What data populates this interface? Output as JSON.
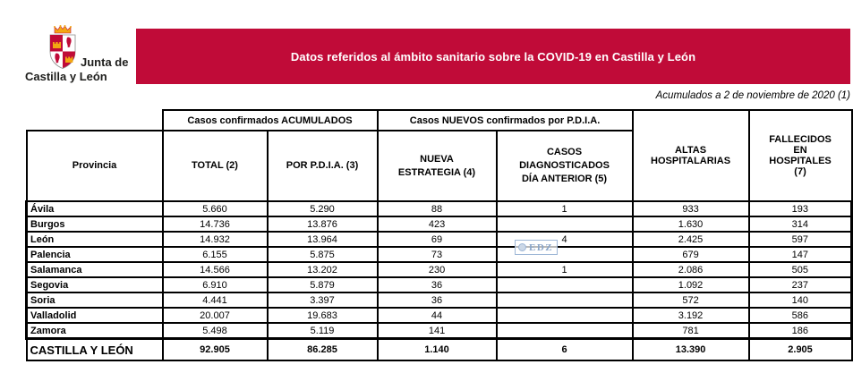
{
  "logo": {
    "line1": "Junta de",
    "line2": "Castilla y León"
  },
  "banner": {
    "text": "Datos referidos al ámbito sanitario sobre la COVID-19 en Castilla y León",
    "bg_color": "#C00B38"
  },
  "date_note": "Acumulados a 2 de noviembre de 2020 (1)",
  "watermark": {
    "text": "EDZ",
    "icon": "circle-seal-icon",
    "color": "#8aa6c9"
  },
  "table": {
    "group_headers": {
      "accumulated": "Casos confirmados ACUMULADOS",
      "new_by_pdia": "Casos NUEVOS confirmados por P.D.I.A."
    },
    "columns": [
      "Provincia",
      "TOTAL (2)",
      "POR P.D.I.A. (3)",
      "NUEVA\nESTRATEGIA (4)",
      "CASOS\nDIAGNOSTICADOS\nDÍA ANTERIOR (5)",
      "ALTAS\nHOSPITALARIAS",
      "FALLECIDOS\nEN\nHOSPITALES\n(7)"
    ],
    "rows": [
      {
        "province": "Ávila",
        "total": "5.660",
        "por_pdia": "5.290",
        "nueva_estrategia": "88",
        "diag_dia_anterior": "1",
        "altas": "933",
        "fallecidos": "193"
      },
      {
        "province": "Burgos",
        "total": "14.736",
        "por_pdia": "13.876",
        "nueva_estrategia": "423",
        "diag_dia_anterior": "",
        "altas": "1.630",
        "fallecidos": "314"
      },
      {
        "province": "León",
        "total": "14.932",
        "por_pdia": "13.964",
        "nueva_estrategia": "69",
        "diag_dia_anterior": "4",
        "altas": "2.425",
        "fallecidos": "597"
      },
      {
        "province": "Palencia",
        "total": "6.155",
        "por_pdia": "5.875",
        "nueva_estrategia": "73",
        "diag_dia_anterior": "",
        "altas": "679",
        "fallecidos": "147"
      },
      {
        "province": "Salamanca",
        "total": "14.566",
        "por_pdia": "13.202",
        "nueva_estrategia": "230",
        "diag_dia_anterior": "1",
        "altas": "2.086",
        "fallecidos": "505"
      },
      {
        "province": "Segovia",
        "total": "6.910",
        "por_pdia": "5.879",
        "nueva_estrategia": "36",
        "diag_dia_anterior": "",
        "altas": "1.092",
        "fallecidos": "237"
      },
      {
        "province": "Soria",
        "total": "4.441",
        "por_pdia": "3.397",
        "nueva_estrategia": "36",
        "diag_dia_anterior": "",
        "altas": "572",
        "fallecidos": "140"
      },
      {
        "province": "Valladolid",
        "total": "20.007",
        "por_pdia": "19.683",
        "nueva_estrategia": "44",
        "diag_dia_anterior": "",
        "altas": "3.192",
        "fallecidos": "586"
      },
      {
        "province": "Zamora",
        "total": "5.498",
        "por_pdia": "5.119",
        "nueva_estrategia": "141",
        "diag_dia_anterior": "",
        "altas": "781",
        "fallecidos": "186"
      }
    ],
    "footer": {
      "label": "CASTILLA Y LEÓN",
      "total": "92.905",
      "por_pdia": "86.285",
      "nueva_estrategia": "1.140",
      "diag_dia_anterior": "6",
      "altas": "13.390",
      "fallecidos": "2.905"
    }
  }
}
